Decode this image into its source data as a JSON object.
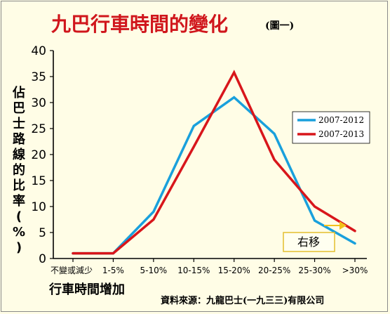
{
  "title": "九巴行車時間的變化",
  "subtitle": "(圖一)",
  "source": "資料來源：九龍巴士(一九三三)有限公司",
  "shift_label": "右移",
  "colors": {
    "series_a": "#19a0dc",
    "series_b": "#d8161b",
    "title": "#d0161c",
    "arrow": "#f2c21b"
  },
  "chart_data": {
    "type": "line",
    "ylabel": "佔巴士路線的比率(%)",
    "xlabel": "行車時間增加",
    "ylim": [
      0,
      40
    ],
    "yticks": [
      0,
      5,
      10,
      15,
      20,
      25,
      30,
      35,
      40
    ],
    "categories": [
      "不變或減少",
      "1-5%",
      "5-10%",
      "10-15%",
      "15-20%",
      "20-25%",
      "25-30%",
      ">30%"
    ],
    "grid": false,
    "legend_position": "right",
    "series": [
      {
        "name": "2007-2012",
        "values": [
          1,
          1,
          9,
          25.5,
          31,
          24,
          7.3,
          2.9
        ]
      },
      {
        "name": "2007-2013",
        "values": [
          1,
          1,
          7.5,
          21.5,
          35.8,
          19,
          10,
          5.3
        ]
      }
    ]
  }
}
